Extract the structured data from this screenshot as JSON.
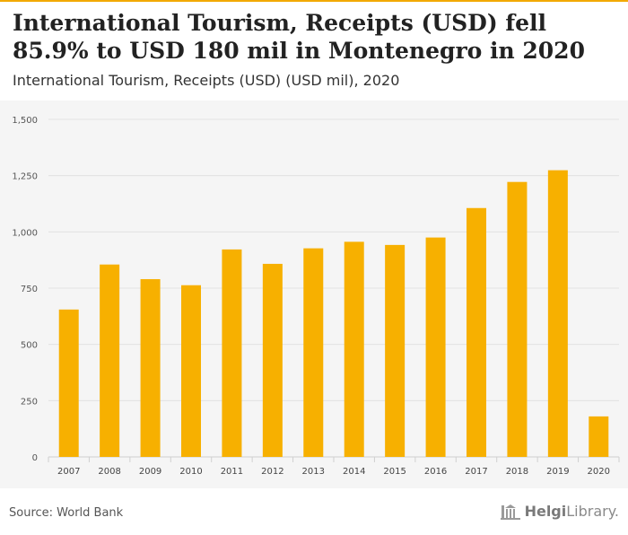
{
  "header": {
    "title": "International Tourism, Receipts (USD) fell 85.9% to USD 180 mil in Montenegro in 2020",
    "subtitle": "International Tourism, Receipts (USD) (USD mil), 2020"
  },
  "footer": {
    "source": "Source: World Bank",
    "logo_bold": "Helgi",
    "logo_light": "Library."
  },
  "colors": {
    "bar": "#f7b000",
    "accent": "#f2a900",
    "background": "#ffffff",
    "chart_background": "#f5f5f5"
  },
  "chart_data": {
    "type": "bar",
    "title": "International Tourism, Receipts (USD) (USD mil)",
    "xlabel": "",
    "ylabel": "",
    "categories": [
      "2007",
      "2008",
      "2009",
      "2010",
      "2011",
      "2012",
      "2013",
      "2014",
      "2015",
      "2016",
      "2017",
      "2018",
      "2019",
      "2020"
    ],
    "values": [
      655,
      855,
      790,
      763,
      922,
      858,
      927,
      956,
      942,
      975,
      1106,
      1222,
      1274,
      180
    ],
    "ylim": [
      0,
      1500
    ],
    "yticks": [
      0,
      250,
      500,
      750,
      1000,
      1250,
      1500
    ],
    "ytick_labels": [
      "0",
      "250",
      "500",
      "750",
      "1,000",
      "1,250",
      "1,500"
    ],
    "grid": true,
    "legend": "none"
  }
}
